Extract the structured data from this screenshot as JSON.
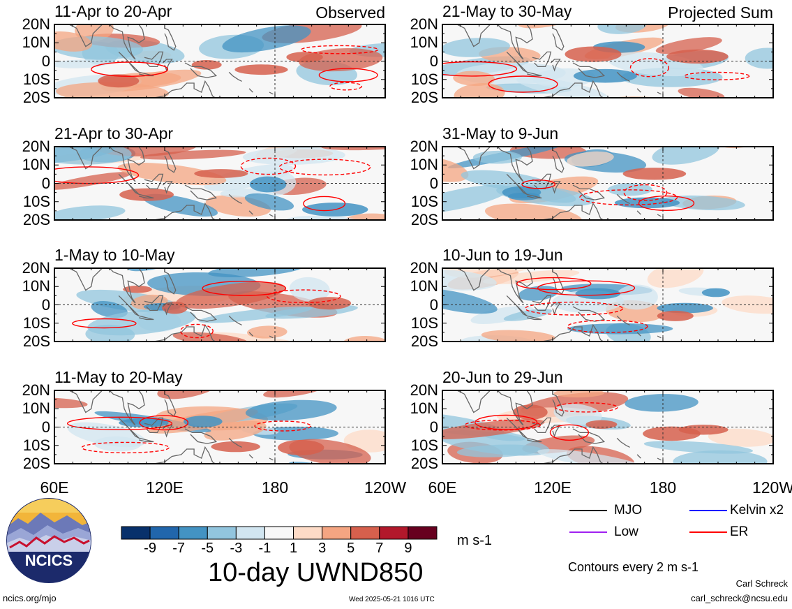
{
  "panels": [
    {
      "title": "11-Apr to 20-Apr",
      "label": "Observed",
      "col": 0,
      "row": 0,
      "seed": 1
    },
    {
      "title": "21-Apr to 30-Apr",
      "label": "",
      "col": 0,
      "row": 1,
      "seed": 2
    },
    {
      "title": "1-May to 10-May",
      "label": "",
      "col": 0,
      "row": 2,
      "seed": 3
    },
    {
      "title": "11-May to 20-May",
      "label": "",
      "col": 0,
      "row": 3,
      "seed": 4
    },
    {
      "title": "21-May to 30-May",
      "label": "Projected Sum",
      "col": 1,
      "row": 0,
      "seed": 5
    },
    {
      "title": "31-May to 9-Jun",
      "label": "",
      "col": 1,
      "row": 1,
      "seed": 6
    },
    {
      "title": "10-Jun to 19-Jun",
      "label": "",
      "col": 1,
      "row": 2,
      "seed": 7
    },
    {
      "title": "20-Jun to 29-Jun",
      "label": "",
      "col": 1,
      "row": 3,
      "seed": 8
    }
  ],
  "chart_data": {
    "type": "heatmap",
    "title": "10-day UWND850",
    "x_ticks": [
      "60E",
      "120E",
      "180",
      "120W"
    ],
    "y_ticks": [
      "20N",
      "10N",
      "0",
      "10S",
      "20S"
    ],
    "xlim_deg_east": [
      60,
      240
    ],
    "ylim_deg": [
      -20,
      20
    ],
    "units": "m s-1",
    "colorbar": {
      "ticks": [
        "-9",
        "-7",
        "-5",
        "-3",
        "-1",
        "1",
        "3",
        "5",
        "7",
        "9"
      ],
      "colors": [
        "#08306b",
        "#2166ac",
        "#4393c3",
        "#92c5de",
        "#d1e5f0",
        "#f7f7f7",
        "#fddbc7",
        "#f4a582",
        "#d6604d",
        "#b2182b",
        "#67001f"
      ]
    },
    "legend": [
      {
        "label": "MJO",
        "color": "#000000"
      },
      {
        "label": "Kelvin x2",
        "color": "#0000ff"
      },
      {
        "label": "Low",
        "color": "#a020f0"
      },
      {
        "label": "ER",
        "color": "#ff0000"
      }
    ],
    "contour_note": "Contours every 2 m s-1"
  },
  "footer": {
    "logo_text": "NCICS",
    "url": "ncics.org/mjo",
    "timestamp": "Wed 2025-05-21 1016 UTC",
    "author": "Carl Schreck",
    "email": "carl_schreck@ncsu.edu"
  }
}
